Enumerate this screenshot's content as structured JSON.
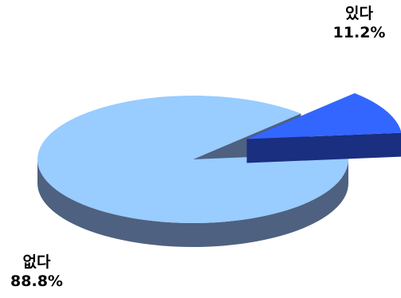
{
  "chart_data": {
    "type": "pie",
    "style": "3d-exploded",
    "title": "",
    "slices": [
      {
        "label": "있다",
        "value": 11.2,
        "value_label": "11.2%",
        "color": "#3366FF",
        "side_color": "#1A2F80",
        "exploded": true
      },
      {
        "label": "없다",
        "value": 88.8,
        "value_label": "88.8%",
        "color": "#99CCFF",
        "side_color": "#4F6180",
        "exploded": false
      }
    ],
    "legend": "none",
    "labels_position": "outside"
  }
}
